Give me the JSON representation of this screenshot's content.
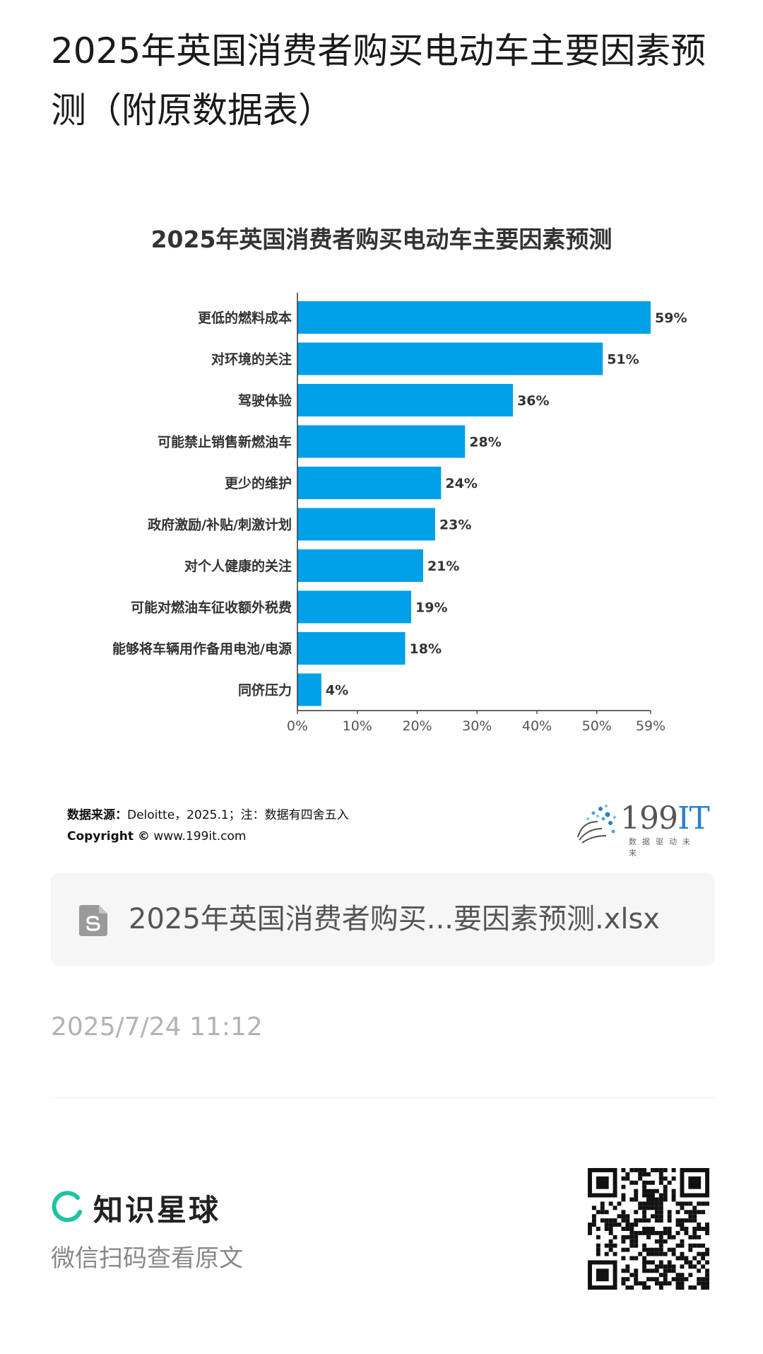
{
  "page": {
    "title": "2025年英国消费者购买电动车主要因素预测（附原数据表）"
  },
  "chart_data": {
    "type": "bar",
    "orientation": "horizontal",
    "title": "2025年英国消费者购买电动车主要因素预测",
    "categories": [
      "更低的燃料成本",
      "对环境的关注",
      "驾驶体验",
      "可能禁止销售新燃油车",
      "更少的维护",
      "政府激励/补贴/刺激计划",
      "对个人健康的关注",
      "可能对燃油车征收额外税费",
      "能够将车辆用作备用电池/电源",
      "同侪压力"
    ],
    "values": [
      59,
      51,
      36,
      28,
      24,
      23,
      21,
      19,
      18,
      4
    ],
    "value_labels": [
      "59%",
      "51%",
      "36%",
      "28%",
      "24%",
      "23%",
      "21%",
      "19%",
      "18%",
      "4%"
    ],
    "x_ticks": [
      "0%",
      "10%",
      "20%",
      "30%",
      "40%",
      "50%",
      "59%"
    ],
    "xlim": [
      0,
      59
    ],
    "grid": false,
    "bar_color": "#00a0e9"
  },
  "source": {
    "label": "数据来源：",
    "text": "Deloitte，2025.1；注：数据有四舍五入",
    "copyright_label": "Copyright ©",
    "copyright_url": "www.199it.com"
  },
  "brand": {
    "number": "199",
    "suffix": "IT",
    "tagline": "数据驱动未来"
  },
  "file": {
    "name": "2025年英国消费者购买...要因素预测.xlsx",
    "icon": "sheet-file-icon"
  },
  "timestamp": "2025/7/24 11:12",
  "footer": {
    "app_name": "知识星球",
    "scan_hint": "微信扫码查看原文",
    "qr_icon": "qr-code-icon"
  }
}
